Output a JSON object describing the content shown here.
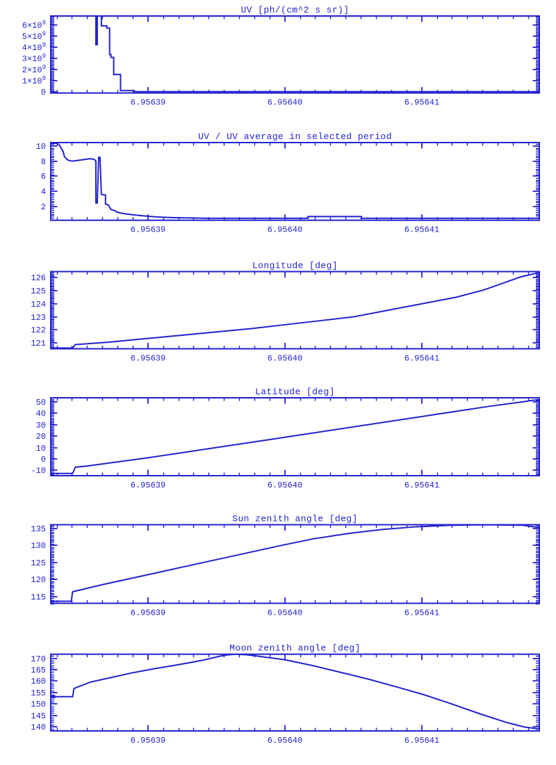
{
  "page": {
    "background": "#ffffff",
    "line_color": "#2222cf"
  },
  "x_axis": {
    "tick_labels": [
      "6.95639",
      "6.95640",
      "6.95641"
    ],
    "tick_values": [
      6.95639,
      6.9564,
      6.95641
    ],
    "min": 6.9563829,
    "max": 6.9564186,
    "minor_subdiv": 9
  },
  "chart_data": [
    {
      "type": "line",
      "title": "UV [ph/(cm^2 s sr)]",
      "ylim": [
        -120000000.0,
        6840000000.0
      ],
      "ytick_values": [
        0,
        1000000000.0,
        2000000000.0,
        3000000000.0,
        4000000000.0,
        5000000000.0,
        6000000000.0
      ],
      "ytick_labels": [
        "0",
        "1×10^9",
        "2×10^9",
        "3×10^9",
        "4×10^9",
        "5×10^9",
        "6×10^9"
      ],
      "y_minor_subdiv": 8,
      "points": [
        [
          6.9563861,
          8000000000.0
        ],
        [
          6.9563862,
          8000000000.0
        ],
        [
          6.9563862,
          4250000000.0
        ],
        [
          6.9563863,
          4250000000.0
        ],
        [
          6.9563863,
          8000000000.0
        ],
        [
          6.9563866,
          8000000000.0
        ],
        [
          6.9563866,
          5950000000.0
        ],
        [
          6.956387,
          5950000000.0
        ],
        [
          6.956387,
          5750000000.0
        ],
        [
          6.9563872,
          5750000000.0
        ],
        [
          6.9563872,
          3350000000.0
        ],
        [
          6.9563873,
          3350000000.0
        ],
        [
          6.9563873,
          3100000000.0
        ],
        [
          6.9563875,
          3100000000.0
        ],
        [
          6.9563875,
          1550000000.0
        ],
        [
          6.956388,
          1550000000.0
        ],
        [
          6.956388,
          100000000.0
        ],
        [
          6.956389,
          100000000.0
        ],
        [
          6.956389,
          0.0
        ],
        [
          6.9564186,
          0.0
        ]
      ]
    },
    {
      "type": "line",
      "title": "UV / UV average in selected period",
      "ylim": [
        0.155,
        10.46
      ],
      "ytick_values": [
        2,
        4,
        6,
        8,
        10
      ],
      "ytick_labels": [
        "2",
        "4",
        "6",
        "8",
        "10"
      ],
      "y_minor_subdiv": 8,
      "points": [
        [
          6.9563829,
          10.37
        ],
        [
          6.9563833,
          10.37
        ],
        [
          6.9563835,
          10.2
        ],
        [
          6.9563836,
          9.9
        ],
        [
          6.9563838,
          9.3
        ],
        [
          6.9563839,
          8.6
        ],
        [
          6.9563841,
          8.2
        ],
        [
          6.9563843,
          8.05
        ],
        [
          6.9563845,
          8.0
        ],
        [
          6.9563849,
          8.1
        ],
        [
          6.9563853,
          8.2
        ],
        [
          6.9563857,
          8.3
        ],
        [
          6.9563859,
          8.3
        ],
        [
          6.9563861,
          8.2
        ],
        [
          6.9563862,
          8.0
        ],
        [
          6.9563862,
          2.45
        ],
        [
          6.9563863,
          2.45
        ],
        [
          6.9563864,
          8.5
        ],
        [
          6.9563865,
          8.5
        ],
        [
          6.9563866,
          3.6
        ],
        [
          6.9563867,
          3.55
        ],
        [
          6.9563869,
          3.5
        ],
        [
          6.9563869,
          2.3
        ],
        [
          6.9563871,
          2.2
        ],
        [
          6.9563873,
          1.6
        ],
        [
          6.9563876,
          1.4
        ],
        [
          6.9563878,
          1.2
        ],
        [
          6.9563882,
          1.05
        ],
        [
          6.9563888,
          0.9
        ],
        [
          6.9563896,
          0.75
        ],
        [
          6.9563906,
          0.6
        ],
        [
          6.9563919,
          0.5
        ],
        [
          6.9563944,
          0.42
        ],
        [
          6.9564017,
          0.42
        ],
        [
          6.9564017,
          0.65
        ],
        [
          6.9564056,
          0.65
        ],
        [
          6.9564056,
          0.42
        ],
        [
          6.9564186,
          0.42
        ]
      ]
    },
    {
      "type": "line",
      "title": "Longitude [deg]",
      "ylim": [
        120.56,
        126.47
      ],
      "ytick_values": [
        121,
        122,
        123,
        124,
        125,
        126
      ],
      "ytick_labels": [
        "121",
        "122",
        "123",
        "124",
        "125",
        "126"
      ],
      "y_minor_subdiv": 10,
      "points": [
        [
          6.9563829,
          120.62
        ],
        [
          6.9563845,
          120.62
        ],
        [
          6.9563847,
          120.88
        ],
        [
          6.956387,
          121.05
        ],
        [
          6.95639,
          121.35
        ],
        [
          6.9563925,
          121.6
        ],
        [
          6.956395,
          121.85
        ],
        [
          6.9563975,
          122.1
        ],
        [
          6.9564,
          122.4
        ],
        [
          6.9564025,
          122.7
        ],
        [
          6.956405,
          123.0
        ],
        [
          6.9564075,
          123.5
        ],
        [
          6.95641,
          124.0
        ],
        [
          6.9564125,
          124.5
        ],
        [
          6.9564145,
          125.05
        ],
        [
          6.956416,
          125.6
        ],
        [
          6.9564172,
          126.05
        ],
        [
          6.9564186,
          126.4
        ]
      ]
    },
    {
      "type": "line",
      "title": "Latitude [deg]",
      "ylim": [
        -14.7,
        53.66
      ],
      "ytick_values": [
        -10,
        0,
        10,
        20,
        30,
        40,
        50
      ],
      "ytick_labels": [
        "-10",
        "0",
        "10",
        "20",
        "30",
        "40",
        "50"
      ],
      "y_minor_subdiv": 8,
      "points": [
        [
          6.9563829,
          -12.7
        ],
        [
          6.9563845,
          -12.7
        ],
        [
          6.9563847,
          -7.2
        ],
        [
          6.9563855,
          -6.3
        ],
        [
          6.95639,
          1.0
        ],
        [
          6.9564,
          19.0
        ],
        [
          6.95641,
          37.2
        ],
        [
          6.956415,
          46.3
        ],
        [
          6.9564175,
          50.3
        ],
        [
          6.9564182,
          51.6
        ],
        [
          6.9564186,
          51.8
        ]
      ]
    },
    {
      "type": "line",
      "title": "Sun zenith angle [deg]",
      "ylim": [
        113.0,
        136.1
      ],
      "ytick_values": [
        115,
        120,
        125,
        130,
        135
      ],
      "ytick_labels": [
        "115",
        "120",
        "125",
        "130",
        "135"
      ],
      "y_minor_subdiv": 10,
      "points": [
        [
          6.9563829,
          113.6
        ],
        [
          6.9563844,
          113.6
        ],
        [
          6.9563845,
          116.4
        ],
        [
          6.9563868,
          118.6
        ],
        [
          6.9563893,
          120.8
        ],
        [
          6.9563919,
          123.1
        ],
        [
          6.9563944,
          125.3
        ],
        [
          6.9563969,
          127.5
        ],
        [
          6.9563995,
          129.8
        ],
        [
          6.956402,
          131.9
        ],
        [
          6.9564046,
          133.5
        ],
        [
          6.9564071,
          134.7
        ],
        [
          6.9564096,
          135.5
        ],
        [
          6.9564122,
          135.95
        ],
        [
          6.9564147,
          136.08
        ],
        [
          6.9564174,
          135.95
        ],
        [
          6.956418,
          135.6
        ],
        [
          6.9564186,
          135.3
        ]
      ]
    },
    {
      "type": "line",
      "title": "Moon zenith angle [deg]",
      "ylim": [
        138.17,
        171.83
      ],
      "ytick_values": [
        140,
        145,
        150,
        155,
        160,
        165,
        170
      ],
      "ytick_labels": [
        "140",
        "145",
        "150",
        "155",
        "160",
        "165",
        "170"
      ],
      "y_minor_subdiv": 5,
      "start_marker": [
        6.9563831,
        153.2
      ],
      "points": [
        [
          6.9563829,
          153.2
        ],
        [
          6.9563845,
          153.2
        ],
        [
          6.9563846,
          156.8
        ],
        [
          6.9563858,
          159.6
        ],
        [
          6.9563873,
          161.6
        ],
        [
          6.9563888,
          163.6
        ],
        [
          6.9563903,
          165.3
        ],
        [
          6.9563919,
          166.9
        ],
        [
          6.9563934,
          168.5
        ],
        [
          6.9563944,
          169.7
        ],
        [
          6.9563952,
          170.9
        ],
        [
          6.9563959,
          171.6
        ],
        [
          6.9563964,
          171.8
        ],
        [
          6.9563972,
          171.6
        ],
        [
          6.956398,
          171.0
        ],
        [
          6.956399,
          170.2
        ],
        [
          6.9564,
          169.4
        ],
        [
          6.956402,
          166.9
        ],
        [
          6.956404,
          164.0
        ],
        [
          6.9564061,
          160.9
        ],
        [
          6.9564081,
          157.6
        ],
        [
          6.9564102,
          154.0
        ],
        [
          6.9564122,
          150.0
        ],
        [
          6.9564142,
          145.8
        ],
        [
          6.9564162,
          141.9
        ],
        [
          6.9564175,
          139.9
        ],
        [
          6.9564186,
          139.0
        ]
      ]
    }
  ]
}
